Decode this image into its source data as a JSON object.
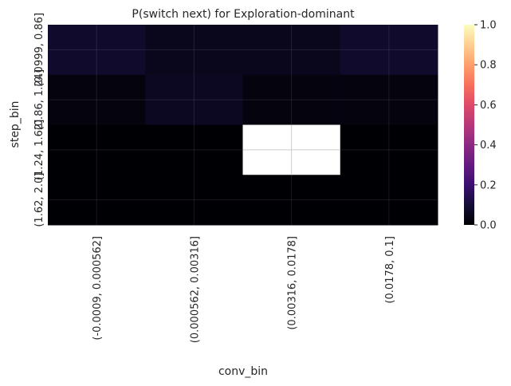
{
  "chart_data": {
    "type": "heatmap",
    "title": "P(switch next) for Exploration-dominant",
    "xlabel": "conv_bin",
    "ylabel": "step_bin",
    "x_categories": [
      "(-0.0009, 0.000562]",
      "(0.000562, 0.00316]",
      "(0.00316, 0.0178]",
      "(0.0178, 0.1]"
    ],
    "y_categories": [
      "(0.0999, 0.86]",
      "(0.86, 1.24]",
      "(1.24, 1.62]",
      "(1.62, 2.0]"
    ],
    "values": [
      [
        0.08,
        0.05,
        0.05,
        0.08
      ],
      [
        0.02,
        0.06,
        0.02,
        0.02
      ],
      [
        0.0,
        0.0,
        null,
        0.0
      ],
      [
        0.0,
        0.0,
        0.0,
        0.0
      ]
    ],
    "missing_color": "#ffffff",
    "colorscale": "magma",
    "vmin": 0.0,
    "vmax": 1.0,
    "colorbar_ticks": [
      "0.0",
      "0.2",
      "0.4",
      "0.6",
      "0.8",
      "1.0"
    ],
    "colorbar_tick_values": [
      0.0,
      0.2,
      0.4,
      0.6,
      0.8,
      1.0
    ],
    "grid": true
  }
}
